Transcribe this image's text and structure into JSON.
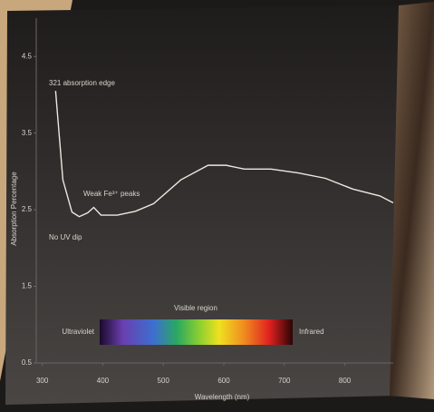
{
  "chart_data": {
    "type": "line",
    "y_label": "Absorption Percentage",
    "x_label": "Wavelength (nm)",
    "annotations": [
      "321 absorption edge",
      "Weak Fe³⁺ peaks",
      "No UV dip",
      "Visible region",
      "Ultraviolet",
      "Infrared"
    ],
    "x": [
      322,
      334,
      349,
      361,
      375,
      385,
      397,
      424,
      454,
      484,
      529,
      574,
      604,
      634,
      678,
      723,
      768,
      813,
      858,
      880
    ],
    "values": [
      4.05,
      2.89,
      2.47,
      2.41,
      2.46,
      2.53,
      2.43,
      2.43,
      2.48,
      2.58,
      2.89,
      3.08,
      3.08,
      3.03,
      3.03,
      2.98,
      2.91,
      2.77,
      2.68,
      2.59
    ],
    "color": "#ece8e0",
    "xlim": [
      290,
      880
    ],
    "ylim": [
      0.5,
      5.0
    ],
    "xticks": [
      300,
      400,
      500,
      600,
      700,
      800
    ],
    "yticks": [
      0.5,
      1.5,
      2.5,
      3.5,
      4.5
    ]
  }
}
